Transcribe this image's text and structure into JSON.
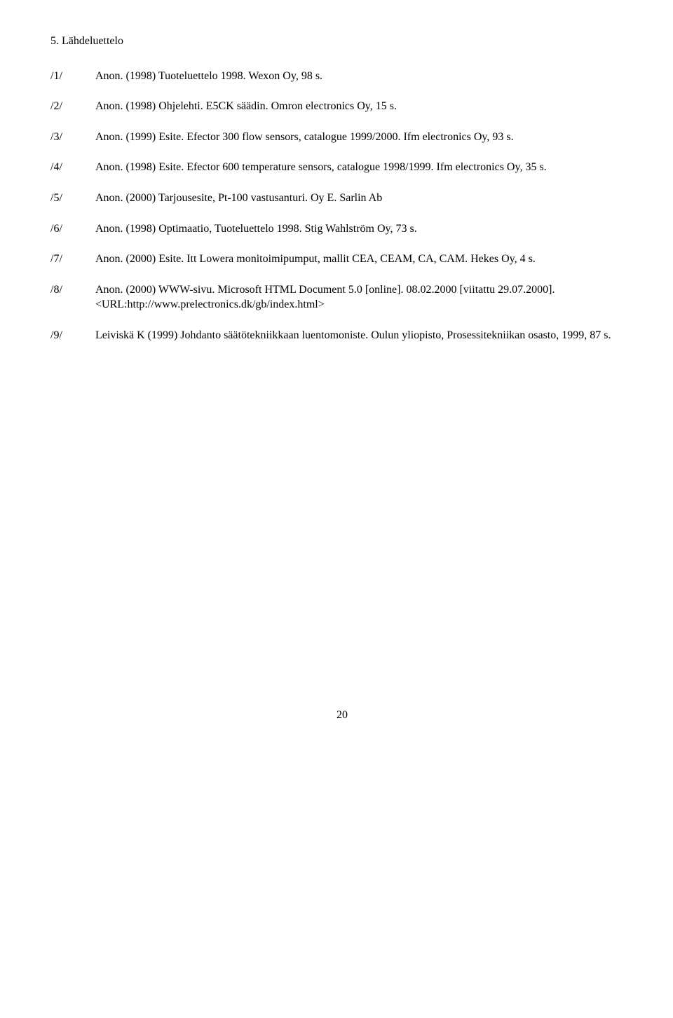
{
  "section_title": "5. Lähdeluettelo",
  "references": [
    {
      "key": "/1/",
      "text": "Anon. (1998) Tuoteluettelo 1998. Wexon Oy, 98 s."
    },
    {
      "key": "/2/",
      "text": "Anon. (1998) Ohjelehti. E5CK säädin. Omron electronics Oy, 15 s."
    },
    {
      "key": "/3/",
      "text": "Anon. (1999) Esite. Efector 300 flow sensors, catalogue 1999/2000. Ifm electronics Oy, 93 s."
    },
    {
      "key": "/4/",
      "text": "Anon. (1998) Esite. Efector 600 temperature sensors, catalogue 1998/1999. Ifm electronics Oy, 35 s."
    },
    {
      "key": "/5/",
      "text": "Anon. (2000) Tarjousesite, Pt-100 vastusanturi. Oy E. Sarlin Ab"
    },
    {
      "key": "/6/",
      "text": "Anon. (1998) Optimaatio, Tuoteluettelo 1998. Stig Wahlström Oy, 73 s."
    },
    {
      "key": "/7/",
      "text": "Anon. (2000) Esite. Itt Lowera monitoimipumput, mallit CEA, CEAM, CA, CAM. Hekes Oy, 4 s."
    },
    {
      "key": "/8/",
      "text": "Anon. (2000) WWW-sivu. Microsoft HTML Document 5.0 [online]. 08.02.2000 [viitattu 29.07.2000]. <URL:http://www.prelectronics.dk/gb/index.html>"
    },
    {
      "key": "/9/",
      "text": "Leiviskä K (1999) Johdanto säätötekniikkaan luentomoniste. Oulun yliopisto, Prosessitekniikan osasto, 1999, 87 s."
    }
  ],
  "page_number": "20",
  "colors": {
    "text": "#000000",
    "background": "#ffffff"
  },
  "typography": {
    "body_fontsize_pt": 12,
    "font_family": "Times New Roman"
  }
}
